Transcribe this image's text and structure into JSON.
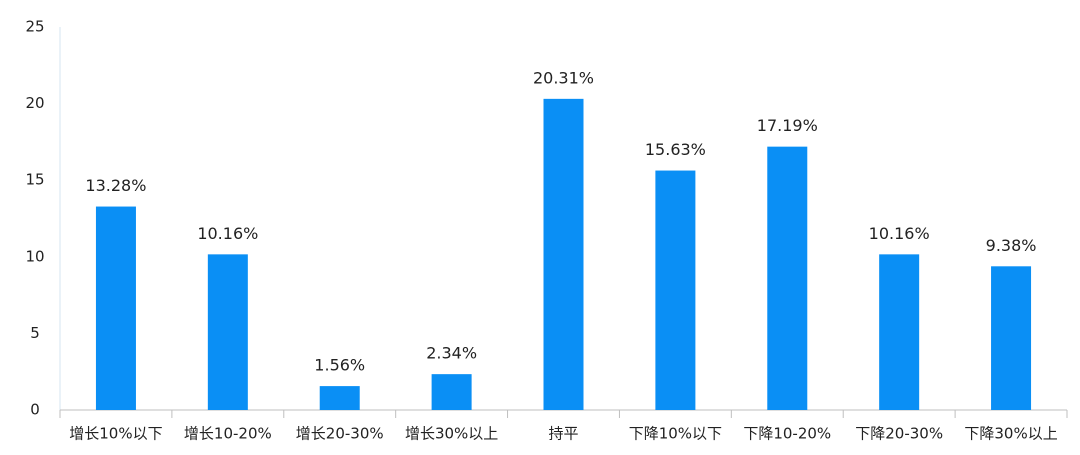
{
  "chart_data": {
    "type": "bar",
    "categories": [
      "增长10%以下",
      "增长10-20%",
      "增长20-30%",
      "增长30%以上",
      "持平",
      "下降10%以下",
      "下降10-20%",
      "下降20-30%",
      "下降30%以上"
    ],
    "values": [
      13.28,
      10.16,
      1.56,
      2.34,
      20.31,
      15.63,
      17.19,
      10.16,
      9.38
    ],
    "value_labels": [
      "13.28%",
      "10.16%",
      "1.56%",
      "2.34%",
      "20.31%",
      "15.63%",
      "17.19%",
      "10.16%",
      "9.38%"
    ],
    "color": "#0a8ff5",
    "ylim": [
      0,
      25
    ],
    "yticks": [
      0,
      5,
      10,
      15,
      20,
      25
    ],
    "grid": false
  }
}
